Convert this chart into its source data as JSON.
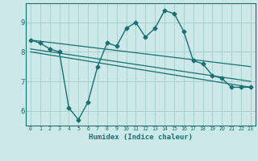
{
  "title": "",
  "xlabel": "Humidex (Indice chaleur)",
  "ylabel": "",
  "background_color": "#cce8e8",
  "grid_color": "#aad0d0",
  "line_color": "#1a7070",
  "x_ticks": [
    0,
    1,
    2,
    3,
    4,
    5,
    6,
    7,
    8,
    9,
    10,
    11,
    12,
    13,
    14,
    15,
    16,
    17,
    18,
    19,
    20,
    21,
    22,
    23
  ],
  "y_ticks": [
    6,
    7,
    8,
    9
  ],
  "ylim": [
    5.5,
    9.65
  ],
  "xlim": [
    -0.5,
    23.5
  ],
  "curve_x": [
    0,
    1,
    2,
    3,
    4,
    5,
    6,
    7,
    8,
    9,
    10,
    11,
    12,
    13,
    14,
    15,
    16,
    17,
    18,
    19,
    20,
    21,
    22,
    23
  ],
  "curve_y": [
    8.4,
    8.3,
    8.1,
    8.0,
    6.1,
    5.7,
    6.3,
    7.5,
    8.3,
    8.2,
    8.8,
    9.0,
    8.5,
    8.8,
    9.4,
    9.3,
    8.7,
    7.7,
    7.6,
    7.2,
    7.1,
    6.8,
    6.8,
    6.8
  ],
  "line1_x": [
    0,
    23
  ],
  "line1_y": [
    8.4,
    7.5
  ],
  "line2_x": [
    0,
    23
  ],
  "line2_y": [
    8.1,
    7.0
  ],
  "line3_x": [
    0,
    23
  ],
  "line3_y": [
    8.0,
    6.8
  ]
}
